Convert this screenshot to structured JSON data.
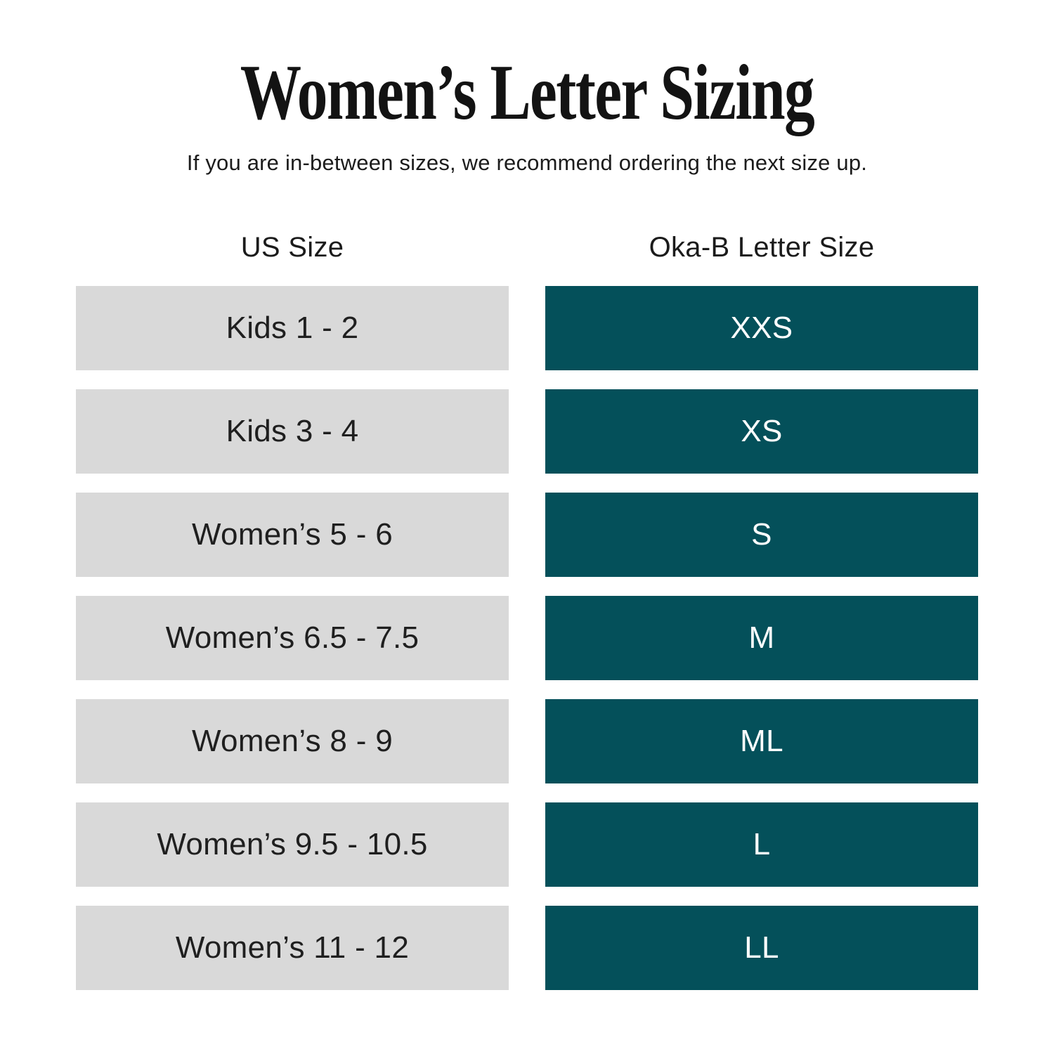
{
  "chart_data": {
    "type": "table",
    "title": "Women’s Letter Sizing",
    "subtitle": "If you are in-between sizes, we recommend ordering the next size up.",
    "columns": [
      "US Size",
      "Oka-B Letter Size"
    ],
    "rows": [
      [
        "Kids 1 - 2",
        "XXS"
      ],
      [
        "Kids 3 - 4",
        "XS"
      ],
      [
        "Women’s 5 - 6",
        "S"
      ],
      [
        "Women’s 6.5 - 7.5",
        "M"
      ],
      [
        "Women’s 8 - 9",
        "ML"
      ],
      [
        "Women’s 9.5 - 10.5",
        "L"
      ],
      [
        "Women’s 11 - 12",
        "LL"
      ]
    ],
    "layout_hints": {
      "left_column_style": "light-gray bars",
      "right_column_style": "dark-teal bars with white text",
      "grid": "off"
    }
  },
  "colors": {
    "teal_bar": "#04505a",
    "gray_bar": "#d9d9d9",
    "text_dark": "#1d1d1d",
    "text_light": "#ffffff",
    "background": "#ffffff"
  }
}
